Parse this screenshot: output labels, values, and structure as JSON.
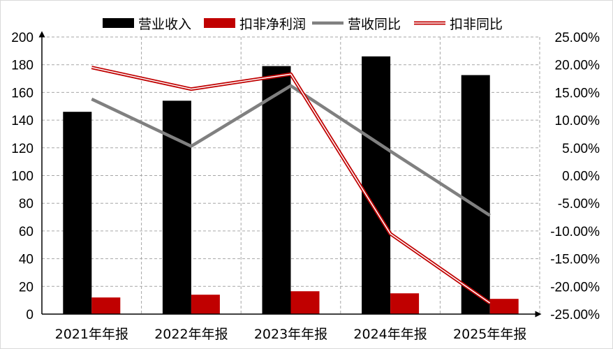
{
  "chart_data": {
    "type": "bar",
    "categories": [
      "2021年年报",
      "2022年年报",
      "2023年年报",
      "2024年年报",
      "2025年年报"
    ],
    "series": [
      {
        "name": "营业收入",
        "kind": "bar",
        "axis": "left",
        "color": "#000000",
        "values": [
          146,
          154,
          179,
          186,
          172.5
        ]
      },
      {
        "name": "扣非净利润",
        "kind": "bar",
        "axis": "left",
        "color": "#c00000",
        "values": [
          12,
          14,
          16.5,
          15,
          11
        ]
      },
      {
        "name": "营收同比",
        "kind": "line",
        "axis": "right",
        "color": "#808080",
        "values": [
          13.8,
          5.3,
          16.2,
          4.4,
          -7.2
        ]
      },
      {
        "name": "扣非同比",
        "kind": "line",
        "axis": "right",
        "color": "#c00000",
        "values": [
          19.5,
          15.6,
          18.3,
          -10.5,
          -23.0
        ]
      }
    ],
    "y_left": {
      "min": 0,
      "max": 200,
      "step": 20,
      "ticks": [
        "0",
        "20",
        "40",
        "60",
        "80",
        "100",
        "120",
        "140",
        "160",
        "180",
        "200"
      ]
    },
    "y_right": {
      "min": -25,
      "max": 25,
      "step": 5,
      "ticks": [
        "-25.00%",
        "-20.00%",
        "-15.00%",
        "-10.00%",
        "-5.00%",
        "0.00%",
        "5.00%",
        "10.00%",
        "15.00%",
        "20.00%",
        "25.00%"
      ]
    },
    "grid": true,
    "legend_position": "top"
  }
}
